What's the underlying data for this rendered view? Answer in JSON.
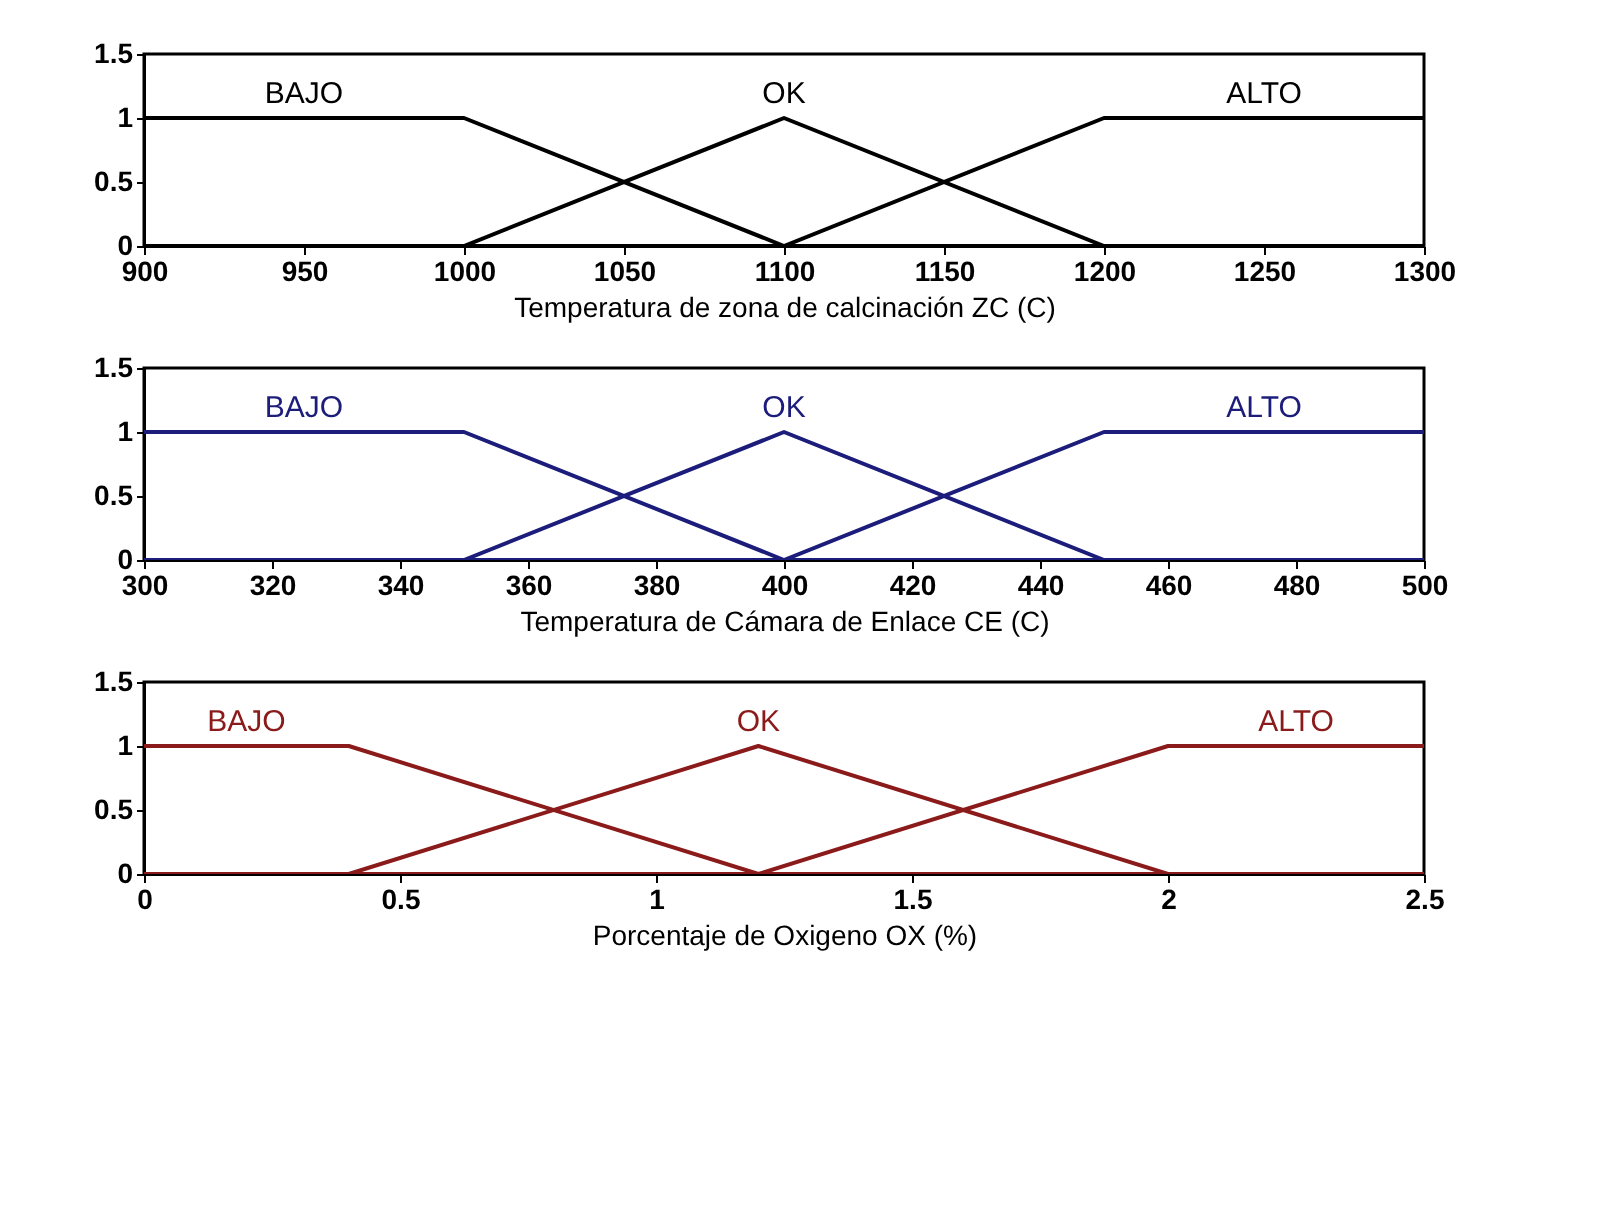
{
  "chart_data": [
    {
      "type": "line",
      "xlabel": "Temperatura de  zona de calcinación ZC (C)",
      "xlim": [
        900,
        1300
      ],
      "xticks": [
        900,
        950,
        1000,
        1050,
        1100,
        1150,
        1200,
        1250,
        1300
      ],
      "ylim": [
        0,
        1.5
      ],
      "yticks": [
        0,
        0.5,
        1,
        1.5
      ],
      "series": [
        {
          "name": "BAJO",
          "color": "#000000",
          "x": [
            900,
            1000,
            1100,
            1300
          ],
          "values": [
            1,
            1,
            0,
            0
          ]
        },
        {
          "name": "OK",
          "color": "#000000",
          "x": [
            900,
            1000,
            1100,
            1200,
            1300
          ],
          "values": [
            0,
            0,
            1,
            0,
            0
          ]
        },
        {
          "name": "ALTO",
          "color": "#000000",
          "x": [
            900,
            1100,
            1200,
            1300
          ],
          "values": [
            0,
            0,
            1,
            1
          ]
        }
      ]
    },
    {
      "type": "line",
      "xlabel": "Temperatura de Cámara de Enlace CE (C)",
      "xlim": [
        300,
        500
      ],
      "xticks": [
        300,
        320,
        340,
        360,
        380,
        400,
        420,
        440,
        460,
        480,
        500
      ],
      "ylim": [
        0,
        1.5
      ],
      "yticks": [
        0,
        0.5,
        1,
        1.5
      ],
      "series": [
        {
          "name": "BAJO",
          "color": "#1c1c7a",
          "x": [
            300,
            350,
            400,
            500
          ],
          "values": [
            1,
            1,
            0,
            0
          ]
        },
        {
          "name": "OK",
          "color": "#1c1c7a",
          "x": [
            300,
            350,
            400,
            450,
            500
          ],
          "values": [
            0,
            0,
            1,
            0,
            0
          ]
        },
        {
          "name": "ALTO",
          "color": "#1c1c7a",
          "x": [
            300,
            400,
            450,
            500
          ],
          "values": [
            0,
            0,
            1,
            1
          ]
        }
      ]
    },
    {
      "type": "line",
      "xlabel": "Porcentaje de Oxigeno OX (%)",
      "xlim": [
        0,
        2.5
      ],
      "xticks": [
        0,
        0.5,
        1,
        1.5,
        2,
        2.5
      ],
      "ylim": [
        0,
        1.5
      ],
      "yticks": [
        0,
        0.5,
        1,
        1.5
      ],
      "series": [
        {
          "name": "BAJO",
          "color": "#8b1a1a",
          "x": [
            0,
            0.4,
            1.2,
            2.5
          ],
          "values": [
            1,
            1,
            0,
            0
          ]
        },
        {
          "name": "OK",
          "color": "#8b1a1a",
          "x": [
            0,
            0.4,
            1.2,
            2,
            2.5
          ],
          "values": [
            0,
            0,
            1,
            0,
            0
          ]
        },
        {
          "name": "ALTO",
          "color": "#8b1a1a",
          "x": [
            0,
            1.2,
            2,
            2.5
          ],
          "values": [
            0,
            0,
            1,
            1
          ]
        }
      ]
    }
  ]
}
